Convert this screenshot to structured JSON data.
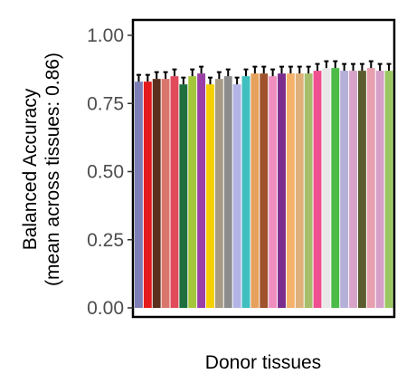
{
  "chart_data": {
    "type": "bar",
    "xlabel": "Donor tissues",
    "ylabel_line1": "Balanced Accuracy",
    "ylabel_line2": "(mean across tissues: 0.86)",
    "ylim": [
      0,
      1.05
    ],
    "yticks": [
      0.0,
      0.25,
      0.5,
      0.75,
      1.0
    ],
    "ytick_labels": [
      "0.00",
      "0.25",
      "0.50",
      "0.75",
      "1.00"
    ],
    "grid": false,
    "legend": "none",
    "values": [
      0.83,
      0.83,
      0.84,
      0.84,
      0.85,
      0.82,
      0.85,
      0.86,
      0.82,
      0.84,
      0.85,
      0.82,
      0.85,
      0.86,
      0.86,
      0.85,
      0.86,
      0.86,
      0.86,
      0.86,
      0.87,
      0.88,
      0.88,
      0.87,
      0.87,
      0.87,
      0.88,
      0.87,
      0.87
    ],
    "errors": [
      0.025,
      0.025,
      0.025,
      0.025,
      0.025,
      0.025,
      0.025,
      0.025,
      0.025,
      0.025,
      0.025,
      0.025,
      0.025,
      0.025,
      0.025,
      0.025,
      0.025,
      0.025,
      0.025,
      0.025,
      0.025,
      0.025,
      0.025,
      0.025,
      0.025,
      0.025,
      0.025,
      0.025,
      0.025
    ],
    "colors": [
      "#7e7eb6",
      "#e41a1c",
      "#5c2e1e",
      "#d9756b",
      "#e04a5a",
      "#1f6e3d",
      "#a4c639",
      "#9a3fa5",
      "#f5d000",
      "#a89b85",
      "#8c8c8c",
      "#b3b3e6",
      "#3fbfbf",
      "#e6a15c",
      "#a0522d",
      "#f08fbf",
      "#7b2d8e",
      "#f5b26b",
      "#e0b07a",
      "#a6bd6b",
      "#f0508f",
      "#e8e8e8",
      "#4cbb47",
      "#b5b0d8",
      "#d8a3c8",
      "#5c5c2e",
      "#e8a0b0",
      "#d6a0c8",
      "#9bc763"
    ]
  }
}
